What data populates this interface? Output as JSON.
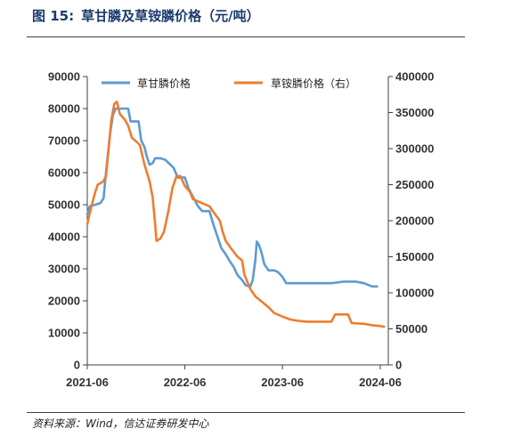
{
  "figure": {
    "number": "图 15:",
    "title": "草甘膦及草铵膦价格（元/吨）",
    "source": "资料来源：Wind，信达证券研发中心"
  },
  "chart_data": {
    "type": "line",
    "left_axis": {
      "range": [
        0,
        90000
      ],
      "ticks": [
        "0",
        "10000",
        "20000",
        "30000",
        "40000",
        "50000",
        "60000",
        "70000",
        "80000",
        "90000"
      ]
    },
    "right_axis": {
      "range": [
        0,
        400000
      ],
      "ticks": [
        "0",
        "50000",
        "100000",
        "150000",
        "200000",
        "250000",
        "300000",
        "350000",
        "400000"
      ]
    },
    "x_axis": {
      "range": [
        "2021-06-01",
        "2024-07-01"
      ],
      "ticks": [
        "2021-06",
        "2022-06",
        "2023-06",
        "2024-06"
      ]
    },
    "legend_position": "top",
    "grid": false,
    "series": [
      {
        "name": "草甘膦价格",
        "axis": "left",
        "color": "#5b9bd5",
        "points": [
          [
            "2021-06-01",
            47000
          ],
          [
            "2021-06-10",
            49500
          ],
          [
            "2021-07-01",
            50000
          ],
          [
            "2021-07-20",
            50500
          ],
          [
            "2021-08-01",
            52000
          ],
          [
            "2021-08-10",
            60000
          ],
          [
            "2021-08-25",
            72000
          ],
          [
            "2021-09-05",
            78000
          ],
          [
            "2021-09-15",
            80000
          ],
          [
            "2021-11-01",
            80000
          ],
          [
            "2021-11-10",
            76000
          ],
          [
            "2021-12-10",
            76000
          ],
          [
            "2021-12-20",
            70000
          ],
          [
            "2022-01-01",
            68000
          ],
          [
            "2022-01-10",
            65000
          ],
          [
            "2022-01-20",
            62500
          ],
          [
            "2022-02-01",
            63000
          ],
          [
            "2022-02-10",
            64500
          ],
          [
            "2022-03-01",
            64500
          ],
          [
            "2022-03-20",
            64000
          ],
          [
            "2022-04-01",
            63000
          ],
          [
            "2022-04-20",
            61500
          ],
          [
            "2022-05-05",
            58500
          ],
          [
            "2022-06-01",
            58500
          ],
          [
            "2022-06-15",
            55000
          ],
          [
            "2022-07-01",
            52500
          ],
          [
            "2022-07-20",
            49500
          ],
          [
            "2022-08-05",
            48000
          ],
          [
            "2022-09-01",
            48000
          ],
          [
            "2022-09-15",
            44000
          ],
          [
            "2022-10-01",
            40000
          ],
          [
            "2022-10-15",
            36500
          ],
          [
            "2022-11-01",
            34500
          ],
          [
            "2022-11-15",
            32500
          ],
          [
            "2022-12-01",
            30500
          ],
          [
            "2022-12-15",
            28000
          ],
          [
            "2023-01-01",
            26500
          ],
          [
            "2023-01-15",
            24800
          ],
          [
            "2023-02-01",
            24500
          ],
          [
            "2023-02-10",
            26500
          ],
          [
            "2023-02-20",
            33000
          ],
          [
            "2023-02-25",
            38500
          ],
          [
            "2023-03-05",
            37500
          ],
          [
            "2023-03-15",
            35000
          ],
          [
            "2023-03-25",
            31500
          ],
          [
            "2023-04-10",
            29500
          ],
          [
            "2023-05-01",
            29500
          ],
          [
            "2023-05-15",
            29000
          ],
          [
            "2023-06-01",
            27500
          ],
          [
            "2023-06-15",
            25500
          ],
          [
            "2023-08-01",
            25500
          ],
          [
            "2023-10-01",
            25500
          ],
          [
            "2023-12-01",
            25500
          ],
          [
            "2024-01-15",
            26000
          ],
          [
            "2024-03-01",
            26000
          ],
          [
            "2024-04-01",
            25500
          ],
          [
            "2024-05-01",
            24500
          ],
          [
            "2024-05-20",
            24500
          ]
        ]
      },
      {
        "name": "草铵膦价格（右）",
        "axis": "right",
        "color": "#ed7d31",
        "points": [
          [
            "2021-06-01",
            195000
          ],
          [
            "2021-06-10",
            210000
          ],
          [
            "2021-06-20",
            225000
          ],
          [
            "2021-07-01",
            240000
          ],
          [
            "2021-07-10",
            250000
          ],
          [
            "2021-07-20",
            252000
          ],
          [
            "2021-08-01",
            255000
          ],
          [
            "2021-08-10",
            262000
          ],
          [
            "2021-08-20",
            300000
          ],
          [
            "2021-08-30",
            340000
          ],
          [
            "2021-09-10",
            362000
          ],
          [
            "2021-09-20",
            365000
          ],
          [
            "2021-10-01",
            348000
          ],
          [
            "2021-10-20",
            340000
          ],
          [
            "2021-11-01",
            332000
          ],
          [
            "2021-11-15",
            315000
          ],
          [
            "2021-12-01",
            310000
          ],
          [
            "2021-12-15",
            305000
          ],
          [
            "2022-01-01",
            278000
          ],
          [
            "2022-01-20",
            255000
          ],
          [
            "2022-02-01",
            232000
          ],
          [
            "2022-02-10",
            195000
          ],
          [
            "2022-02-15",
            172000
          ],
          [
            "2022-03-01",
            175000
          ],
          [
            "2022-03-15",
            185000
          ],
          [
            "2022-04-01",
            215000
          ],
          [
            "2022-04-15",
            245000
          ],
          [
            "2022-05-01",
            262000
          ],
          [
            "2022-05-15",
            262000
          ],
          [
            "2022-06-01",
            248000
          ],
          [
            "2022-06-20",
            240000
          ],
          [
            "2022-07-01",
            230000
          ],
          [
            "2022-08-01",
            225000
          ],
          [
            "2022-09-01",
            220000
          ],
          [
            "2022-09-20",
            210000
          ],
          [
            "2022-10-10",
            200000
          ],
          [
            "2022-10-20",
            185000
          ],
          [
            "2022-11-01",
            172000
          ],
          [
            "2022-11-20",
            162000
          ],
          [
            "2022-12-15",
            150000
          ],
          [
            "2023-01-01",
            145000
          ],
          [
            "2023-01-10",
            125000
          ],
          [
            "2023-02-01",
            105000
          ],
          [
            "2023-02-20",
            95000
          ],
          [
            "2023-03-15",
            88000
          ],
          [
            "2023-04-10",
            80000
          ],
          [
            "2023-05-01",
            72000
          ],
          [
            "2023-06-01",
            67000
          ],
          [
            "2023-07-01",
            63000
          ],
          [
            "2023-08-01",
            61000
          ],
          [
            "2023-09-01",
            60000
          ],
          [
            "2023-10-01",
            60000
          ],
          [
            "2023-12-01",
            60000
          ],
          [
            "2023-12-15",
            70000
          ],
          [
            "2024-02-01",
            70000
          ],
          [
            "2024-02-15",
            58000
          ],
          [
            "2024-04-01",
            57000
          ],
          [
            "2024-05-01",
            55000
          ],
          [
            "2024-06-01",
            54000
          ],
          [
            "2024-06-15",
            53000
          ]
        ]
      }
    ]
  }
}
